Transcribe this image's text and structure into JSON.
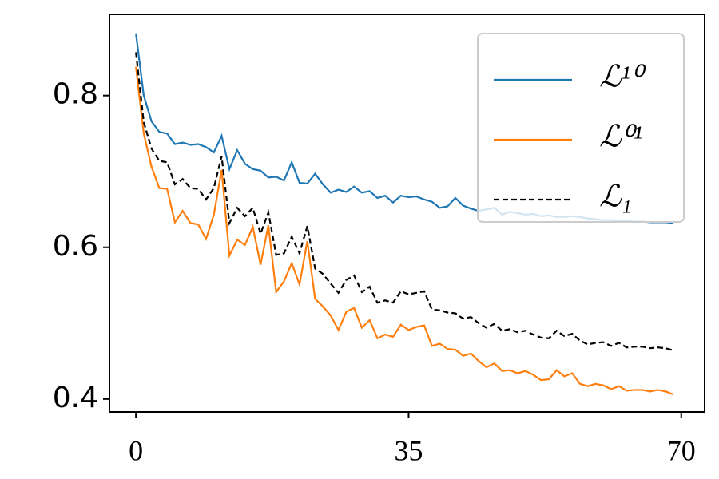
{
  "chart_data": {
    "type": "line",
    "x": [
      0,
      1,
      2,
      3,
      4,
      5,
      6,
      7,
      8,
      9,
      10,
      11,
      12,
      13,
      14,
      15,
      16,
      17,
      18,
      19,
      20,
      21,
      22,
      23,
      24,
      25,
      26,
      27,
      28,
      29,
      30,
      31,
      32,
      33,
      34,
      35,
      36,
      37,
      38,
      39,
      40,
      41,
      42,
      43,
      44,
      45,
      46,
      47,
      48,
      49,
      50,
      51,
      52,
      53,
      54,
      55,
      56,
      57,
      58,
      59,
      60,
      61,
      62,
      63,
      64,
      65,
      66,
      67,
      68,
      69
    ],
    "series": [
      {
        "name": "ℒ¹⁰",
        "color": "#1f77b4",
        "linestyle": "solid",
        "values": [
          0.882,
          0.8,
          0.766,
          0.752,
          0.75,
          0.736,
          0.738,
          0.735,
          0.736,
          0.732,
          0.725,
          0.747,
          0.703,
          0.728,
          0.71,
          0.703,
          0.701,
          0.692,
          0.693,
          0.688,
          0.712,
          0.685,
          0.684,
          0.697,
          0.683,
          0.672,
          0.676,
          0.673,
          0.68,
          0.672,
          0.674,
          0.665,
          0.668,
          0.659,
          0.668,
          0.666,
          0.667,
          0.663,
          0.66,
          0.652,
          0.654,
          0.665,
          0.655,
          0.651,
          0.648,
          0.65,
          0.652,
          0.643,
          0.647,
          0.645,
          0.643,
          0.644,
          0.641,
          0.642,
          0.64,
          0.64,
          0.641,
          0.64,
          0.638,
          0.637,
          0.636,
          0.636,
          0.635,
          0.635,
          0.634,
          0.634,
          0.633,
          0.633,
          0.633,
          0.632
        ]
      },
      {
        "name": "ℒ⁰¹",
        "color": "#ff7f0e",
        "linestyle": "solid",
        "values": [
          0.838,
          0.75,
          0.706,
          0.678,
          0.677,
          0.633,
          0.648,
          0.632,
          0.63,
          0.611,
          0.643,
          0.702,
          0.589,
          0.61,
          0.603,
          0.627,
          0.577,
          0.629,
          0.541,
          0.555,
          0.579,
          0.551,
          0.608,
          0.532,
          0.522,
          0.51,
          0.491,
          0.515,
          0.52,
          0.494,
          0.504,
          0.48,
          0.485,
          0.482,
          0.498,
          0.491,
          0.495,
          0.497,
          0.47,
          0.473,
          0.466,
          0.465,
          0.457,
          0.46,
          0.45,
          0.442,
          0.447,
          0.437,
          0.438,
          0.434,
          0.437,
          0.432,
          0.425,
          0.426,
          0.438,
          0.43,
          0.434,
          0.42,
          0.417,
          0.42,
          0.418,
          0.413,
          0.417,
          0.411,
          0.412,
          0.412,
          0.41,
          0.412,
          0.41,
          0.406
        ]
      },
      {
        "name": "ℒ₁",
        "color": "#000000",
        "linestyle": "dashed",
        "values": [
          0.857,
          0.765,
          0.73,
          0.714,
          0.712,
          0.683,
          0.69,
          0.678,
          0.677,
          0.663,
          0.678,
          0.72,
          0.632,
          0.652,
          0.641,
          0.652,
          0.618,
          0.646,
          0.59,
          0.592,
          0.614,
          0.592,
          0.628,
          0.572,
          0.565,
          0.552,
          0.54,
          0.557,
          0.563,
          0.541,
          0.548,
          0.527,
          0.53,
          0.527,
          0.542,
          0.538,
          0.54,
          0.542,
          0.518,
          0.517,
          0.514,
          0.513,
          0.506,
          0.508,
          0.5,
          0.494,
          0.499,
          0.49,
          0.492,
          0.488,
          0.49,
          0.485,
          0.481,
          0.48,
          0.49,
          0.483,
          0.486,
          0.477,
          0.472,
          0.474,
          0.475,
          0.47,
          0.474,
          0.468,
          0.469,
          0.469,
          0.467,
          0.468,
          0.467,
          0.464
        ]
      }
    ],
    "xlim": [
      -3.4,
      73.0
    ],
    "ylim": [
      0.383,
      0.907
    ],
    "xticks": [
      0,
      35,
      70
    ],
    "yticks": [
      0.4,
      0.6,
      0.8
    ],
    "grid": false,
    "legend": "upper right"
  }
}
